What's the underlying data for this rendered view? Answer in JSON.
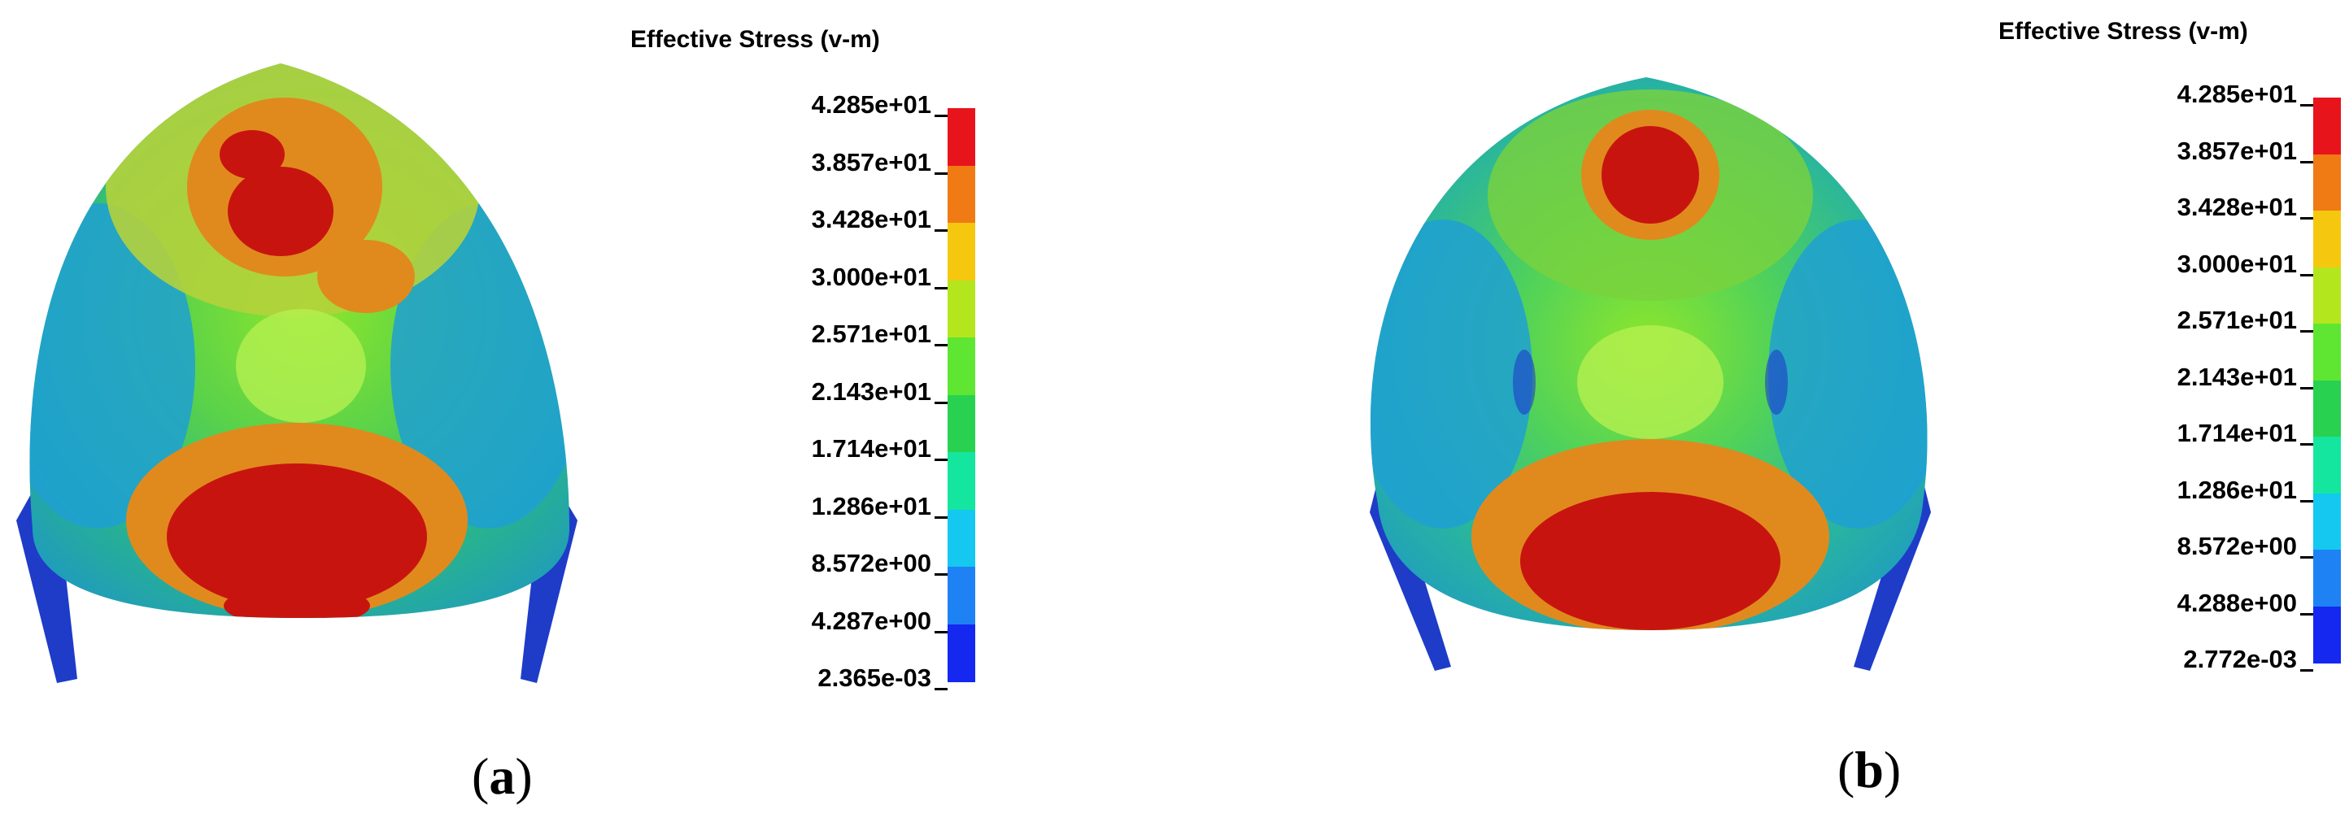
{
  "panels": [
    {
      "id": "a",
      "caption_letter": "a",
      "legend_title": "Effective Stress (v-m)",
      "tick_labels": [
        "4.285e+01",
        "3.857e+01",
        "3.428e+01",
        "3.000e+01",
        "2.571e+01",
        "2.143e+01",
        "1.714e+01",
        "1.286e+01",
        "8.572e+00",
        "4.287e+00",
        "2.365e-03"
      ]
    },
    {
      "id": "b",
      "caption_letter": "b",
      "legend_title": "Effective Stress (v-m)",
      "tick_labels": [
        "4.285e+01",
        "3.857e+01",
        "3.428e+01",
        "3.000e+01",
        "2.571e+01",
        "2.143e+01",
        "1.714e+01",
        "1.286e+01",
        "8.572e+00",
        "4.288e+00",
        "2.772e-03"
      ]
    }
  ],
  "colors": {
    "scale": [
      "#e8141c",
      "#f07a14",
      "#f5c80f",
      "#b4e61e",
      "#5fe632",
      "#28d250",
      "#14e6a0",
      "#14c8f0",
      "#1e82f5",
      "#1428f0"
    ],
    "helmet_dark_red": "#c8140f",
    "helmet_blue_edge": "#1e3cc8"
  }
}
